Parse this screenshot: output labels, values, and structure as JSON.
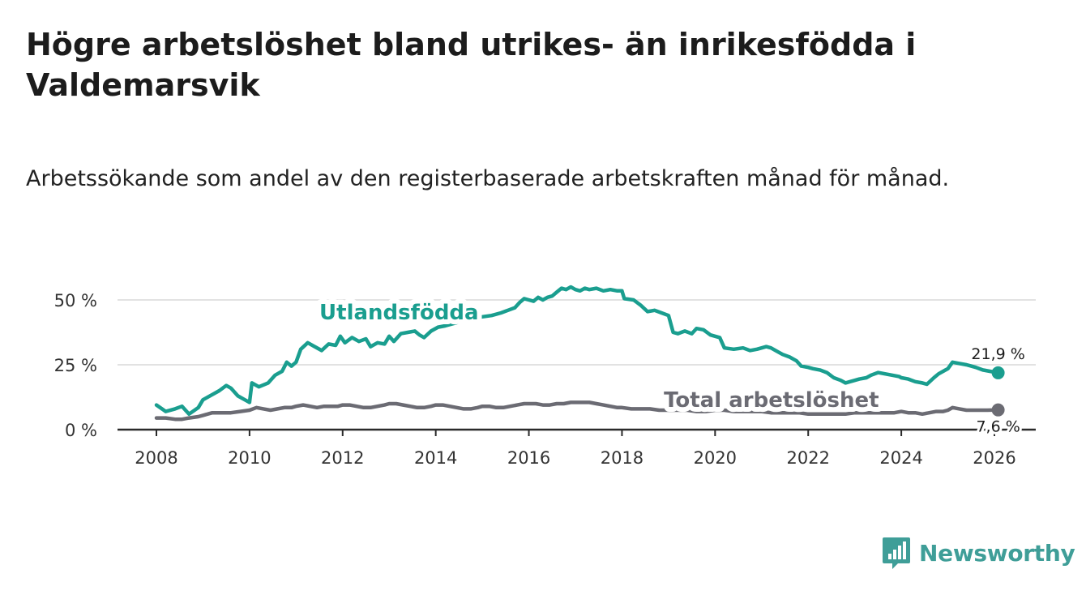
{
  "title": "Högre arbetslöshet bland utrikes- än inrikesfödda i Valdemarsvik",
  "subtitle": "Arbetssökande som andel av den registerbaserade arbetskraften månad för månad.",
  "brand": {
    "name": "Newsworthy",
    "icon": "newsworthy-logo-icon",
    "color": "#3f9e98"
  },
  "chart_data": {
    "type": "line",
    "title": "Högre arbetslöshet bland utrikes- än inrikesfödda i Valdemarsvik",
    "subtitle": "Arbetssökande som andel av den registerbaserade arbetskraften månad för månad.",
    "xlabel": "",
    "ylabel": "",
    "xlim": [
      2007.9,
      2026.3
    ],
    "ylim": [
      0,
      50
    ],
    "x_ticks": [
      2008,
      2010,
      2012,
      2014,
      2016,
      2018,
      2020,
      2022,
      2024,
      2026
    ],
    "x_tick_labels": [
      "2008",
      "2010",
      "2012",
      "2014",
      "2016",
      "2018",
      "2020",
      "2022",
      "2024",
      "2026"
    ],
    "y_ticks": [
      0,
      25,
      50
    ],
    "y_tick_labels": [
      "0 %",
      "25 %",
      "50 %"
    ],
    "grid": true,
    "series": [
      {
        "name": "Utlandsfödda",
        "color": "#1a9e8f",
        "end_label": "21,9 %",
        "label_position": [
          2011.5,
          42.5
        ],
        "points": [
          [
            2008.0,
            9.5
          ],
          [
            2008.2,
            7.0
          ],
          [
            2008.4,
            8.0
          ],
          [
            2008.55,
            9.0
          ],
          [
            2008.7,
            6.0
          ],
          [
            2008.9,
            8.5
          ],
          [
            2009.0,
            11.5
          ],
          [
            2009.2,
            13.5
          ],
          [
            2009.35,
            15.0
          ],
          [
            2009.5,
            17.0
          ],
          [
            2009.6,
            16.0
          ],
          [
            2009.75,
            13.0
          ],
          [
            2009.9,
            11.5
          ],
          [
            2010.0,
            10.5
          ],
          [
            2010.05,
            18.0
          ],
          [
            2010.2,
            16.5
          ],
          [
            2010.4,
            18.0
          ],
          [
            2010.55,
            21.0
          ],
          [
            2010.7,
            22.5
          ],
          [
            2010.8,
            26.0
          ],
          [
            2010.9,
            24.5
          ],
          [
            2011.0,
            26.0
          ],
          [
            2011.1,
            31.0
          ],
          [
            2011.25,
            33.5
          ],
          [
            2011.4,
            32.0
          ],
          [
            2011.55,
            30.5
          ],
          [
            2011.7,
            33.0
          ],
          [
            2011.85,
            32.5
          ],
          [
            2011.95,
            36.0
          ],
          [
            2012.05,
            33.5
          ],
          [
            2012.2,
            35.5
          ],
          [
            2012.35,
            34.0
          ],
          [
            2012.5,
            35.0
          ],
          [
            2012.6,
            32.0
          ],
          [
            2012.75,
            33.5
          ],
          [
            2012.9,
            33.0
          ],
          [
            2013.0,
            36.0
          ],
          [
            2013.1,
            34.0
          ],
          [
            2013.25,
            37.0
          ],
          [
            2013.4,
            37.5
          ],
          [
            2013.55,
            38.0
          ],
          [
            2013.65,
            36.5
          ],
          [
            2013.75,
            35.5
          ],
          [
            2013.9,
            38.0
          ],
          [
            2014.05,
            39.5
          ],
          [
            2014.2,
            40.0
          ],
          [
            2014.4,
            41.0
          ],
          [
            2014.6,
            42.0
          ],
          [
            2014.8,
            43.0
          ],
          [
            2015.0,
            43.5
          ],
          [
            2015.2,
            44.0
          ],
          [
            2015.4,
            45.0
          ],
          [
            2015.55,
            46.0
          ],
          [
            2015.7,
            47.0
          ],
          [
            2015.8,
            49.0
          ],
          [
            2015.9,
            50.5
          ],
          [
            2016.0,
            50.0
          ],
          [
            2016.1,
            49.5
          ],
          [
            2016.2,
            51.0
          ],
          [
            2016.3,
            50.0
          ],
          [
            2016.4,
            51.0
          ],
          [
            2016.5,
            51.5
          ],
          [
            2016.6,
            53.0
          ],
          [
            2016.7,
            54.5
          ],
          [
            2016.8,
            54.0
          ],
          [
            2016.9,
            55.0
          ],
          [
            2017.0,
            54.0
          ],
          [
            2017.1,
            53.5
          ],
          [
            2017.2,
            54.5
          ],
          [
            2017.3,
            54.0
          ],
          [
            2017.45,
            54.5
          ],
          [
            2017.6,
            53.5
          ],
          [
            2017.75,
            54.0
          ],
          [
            2017.9,
            53.5
          ],
          [
            2018.0,
            53.5
          ],
          [
            2018.05,
            50.5
          ],
          [
            2018.25,
            50.0
          ],
          [
            2018.4,
            48.0
          ],
          [
            2018.55,
            45.5
          ],
          [
            2018.7,
            46.0
          ],
          [
            2018.85,
            45.0
          ],
          [
            2019.0,
            44.0
          ],
          [
            2019.1,
            37.5
          ],
          [
            2019.2,
            37.0
          ],
          [
            2019.35,
            38.0
          ],
          [
            2019.5,
            37.0
          ],
          [
            2019.6,
            39.0
          ],
          [
            2019.75,
            38.5
          ],
          [
            2019.9,
            36.5
          ],
          [
            2020.0,
            36.0
          ],
          [
            2020.1,
            35.5
          ],
          [
            2020.2,
            31.5
          ],
          [
            2020.4,
            31.0
          ],
          [
            2020.6,
            31.5
          ],
          [
            2020.75,
            30.5
          ],
          [
            2020.9,
            31.0
          ],
          [
            2021.0,
            31.5
          ],
          [
            2021.1,
            32.0
          ],
          [
            2021.2,
            31.5
          ],
          [
            2021.3,
            30.5
          ],
          [
            2021.45,
            29.0
          ],
          [
            2021.6,
            28.0
          ],
          [
            2021.75,
            26.5
          ],
          [
            2021.85,
            24.5
          ],
          [
            2022.0,
            24.0
          ],
          [
            2022.1,
            23.5
          ],
          [
            2022.25,
            23.0
          ],
          [
            2022.4,
            22.0
          ],
          [
            2022.55,
            20.0
          ],
          [
            2022.7,
            19.0
          ],
          [
            2022.8,
            18.0
          ],
          [
            2022.9,
            18.5
          ],
          [
            2023.0,
            19.0
          ],
          [
            2023.1,
            19.5
          ],
          [
            2023.25,
            20.0
          ],
          [
            2023.35,
            21.0
          ],
          [
            2023.5,
            22.0
          ],
          [
            2023.65,
            21.5
          ],
          [
            2023.8,
            21.0
          ],
          [
            2023.95,
            20.5
          ],
          [
            2024.0,
            20.0
          ],
          [
            2024.15,
            19.5
          ],
          [
            2024.3,
            18.5
          ],
          [
            2024.45,
            18.0
          ],
          [
            2024.55,
            17.5
          ],
          [
            2024.7,
            20.0
          ],
          [
            2024.8,
            21.5
          ],
          [
            2024.95,
            23.0
          ],
          [
            2025.0,
            23.5
          ],
          [
            2025.1,
            26.0
          ],
          [
            2025.25,
            25.5
          ],
          [
            2025.4,
            25.0
          ],
          [
            2025.5,
            24.5
          ],
          [
            2025.6,
            24.0
          ],
          [
            2025.75,
            23.0
          ],
          [
            2025.9,
            22.5
          ],
          [
            2026.0,
            22.2
          ],
          [
            2026.08,
            21.9
          ]
        ]
      },
      {
        "name": "Total arbetslöshet",
        "color": "#6b6b73",
        "end_label": "7,6 %",
        "label_position": [
          2018.9,
          8.7
        ],
        "points": [
          [
            2008.0,
            4.5
          ],
          [
            2008.2,
            4.5
          ],
          [
            2008.4,
            4.0
          ],
          [
            2008.55,
            4.0
          ],
          [
            2008.7,
            4.5
          ],
          [
            2008.9,
            5.0
          ],
          [
            2009.0,
            5.5
          ],
          [
            2009.2,
            6.5
          ],
          [
            2009.4,
            6.5
          ],
          [
            2009.6,
            6.5
          ],
          [
            2009.8,
            7.0
          ],
          [
            2010.0,
            7.5
          ],
          [
            2010.15,
            8.5
          ],
          [
            2010.3,
            8.0
          ],
          [
            2010.45,
            7.5
          ],
          [
            2010.6,
            8.0
          ],
          [
            2010.75,
            8.5
          ],
          [
            2010.9,
            8.5
          ],
          [
            2011.0,
            9.0
          ],
          [
            2011.15,
            9.5
          ],
          [
            2011.3,
            9.0
          ],
          [
            2011.45,
            8.5
          ],
          [
            2011.6,
            9.0
          ],
          [
            2011.75,
            9.0
          ],
          [
            2011.9,
            9.0
          ],
          [
            2012.0,
            9.5
          ],
          [
            2012.15,
            9.5
          ],
          [
            2012.3,
            9.0
          ],
          [
            2012.45,
            8.5
          ],
          [
            2012.6,
            8.5
          ],
          [
            2012.75,
            9.0
          ],
          [
            2012.9,
            9.5
          ],
          [
            2013.0,
            10.0
          ],
          [
            2013.15,
            10.0
          ],
          [
            2013.3,
            9.5
          ],
          [
            2013.45,
            9.0
          ],
          [
            2013.6,
            8.5
          ],
          [
            2013.75,
            8.5
          ],
          [
            2013.9,
            9.0
          ],
          [
            2014.0,
            9.5
          ],
          [
            2014.15,
            9.5
          ],
          [
            2014.3,
            9.0
          ],
          [
            2014.45,
            8.5
          ],
          [
            2014.6,
            8.0
          ],
          [
            2014.75,
            8.0
          ],
          [
            2014.9,
            8.5
          ],
          [
            2015.0,
            9.0
          ],
          [
            2015.15,
            9.0
          ],
          [
            2015.3,
            8.5
          ],
          [
            2015.45,
            8.5
          ],
          [
            2015.6,
            9.0
          ],
          [
            2015.75,
            9.5
          ],
          [
            2015.9,
            10.0
          ],
          [
            2016.0,
            10.0
          ],
          [
            2016.15,
            10.0
          ],
          [
            2016.3,
            9.5
          ],
          [
            2016.45,
            9.5
          ],
          [
            2016.6,
            10.0
          ],
          [
            2016.75,
            10.0
          ],
          [
            2016.9,
            10.5
          ],
          [
            2017.0,
            10.5
          ],
          [
            2017.15,
            10.5
          ],
          [
            2017.3,
            10.5
          ],
          [
            2017.45,
            10.0
          ],
          [
            2017.6,
            9.5
          ],
          [
            2017.75,
            9.0
          ],
          [
            2017.9,
            8.5
          ],
          [
            2018.0,
            8.5
          ],
          [
            2018.2,
            8.0
          ],
          [
            2018.4,
            8.0
          ],
          [
            2018.6,
            8.0
          ],
          [
            2018.8,
            7.5
          ],
          [
            2019.0,
            7.5
          ],
          [
            2019.2,
            7.5
          ],
          [
            2019.4,
            7.5
          ],
          [
            2019.6,
            7.0
          ],
          [
            2019.8,
            7.0
          ],
          [
            2020.0,
            7.5
          ],
          [
            2020.2,
            7.5
          ],
          [
            2020.4,
            7.0
          ],
          [
            2020.6,
            7.0
          ],
          [
            2020.8,
            7.0
          ],
          [
            2021.0,
            7.0
          ],
          [
            2021.2,
            6.5
          ],
          [
            2021.4,
            6.5
          ],
          [
            2021.6,
            6.5
          ],
          [
            2021.8,
            6.5
          ],
          [
            2022.0,
            6.0
          ],
          [
            2022.2,
            6.0
          ],
          [
            2022.4,
            6.0
          ],
          [
            2022.6,
            6.0
          ],
          [
            2022.8,
            6.0
          ],
          [
            2023.0,
            6.5
          ],
          [
            2023.2,
            6.5
          ],
          [
            2023.35,
            6.5
          ],
          [
            2023.5,
            6.5
          ],
          [
            2023.7,
            6.5
          ],
          [
            2023.85,
            6.5
          ],
          [
            2024.0,
            7.0
          ],
          [
            2024.15,
            6.5
          ],
          [
            2024.3,
            6.5
          ],
          [
            2024.45,
            6.0
          ],
          [
            2024.6,
            6.5
          ],
          [
            2024.75,
            7.0
          ],
          [
            2024.9,
            7.0
          ],
          [
            2025.0,
            7.5
          ],
          [
            2025.1,
            8.5
          ],
          [
            2025.25,
            8.0
          ],
          [
            2025.4,
            7.5
          ],
          [
            2025.55,
            7.5
          ],
          [
            2025.7,
            7.5
          ],
          [
            2025.85,
            7.5
          ],
          [
            2026.0,
            7.6
          ],
          [
            2026.08,
            7.6
          ]
        ]
      }
    ]
  }
}
